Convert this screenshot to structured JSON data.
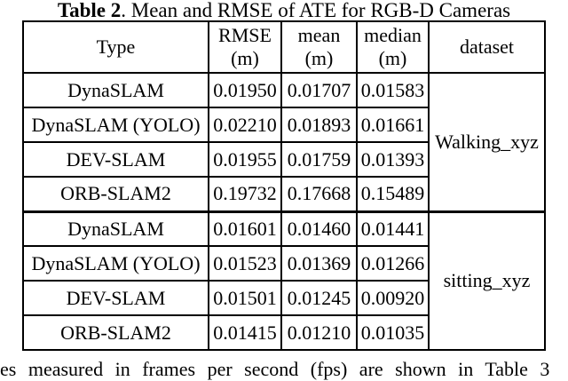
{
  "caption": {
    "bold": "Table 2",
    "rest": ". Mean and RMSE of ATE for RGB-D Cameras"
  },
  "table": {
    "header": {
      "type": "Type",
      "rmse": [
        "RMSE",
        "(m)"
      ],
      "mean": [
        "mean",
        "(m)"
      ],
      "median": [
        "median",
        "(m)"
      ],
      "dataset": "dataset"
    },
    "groups": [
      {
        "dataset": "Walking_xyz",
        "rows": [
          {
            "type": "DynaSLAM",
            "rmse": "0.01950",
            "mean": "0.01707",
            "median": "0.01583"
          },
          {
            "type": "DynaSLAM (YOLO)",
            "rmse": "0.02210",
            "mean": "0.01893",
            "median": "0.01661"
          },
          {
            "type": "DEV-SLAM",
            "rmse": "0.01955",
            "mean": "0.01759",
            "median": "0.01393"
          },
          {
            "type": "ORB-SLAM2",
            "rmse": "0.19732",
            "mean": "0.17668",
            "median": "0.15489"
          }
        ]
      },
      {
        "dataset": "sitting_xyz",
        "rows": [
          {
            "type": "DynaSLAM",
            "rmse": "0.01601",
            "mean": "0.01460",
            "median": "0.01441"
          },
          {
            "type": "DynaSLAM (YOLO)",
            "rmse": "0.01523",
            "mean": "0.01369",
            "median": "0.01266"
          },
          {
            "type": "DEV-SLAM",
            "rmse": "0.01501",
            "mean": "0.01245",
            "median": "0.00920"
          },
          {
            "type": "ORB-SLAM2",
            "rmse": "0.01415",
            "mean": "0.01210",
            "median": "0.01035"
          }
        ]
      }
    ]
  },
  "footer_text": "es measured in frames per second (fps) are shown in Table 3"
}
